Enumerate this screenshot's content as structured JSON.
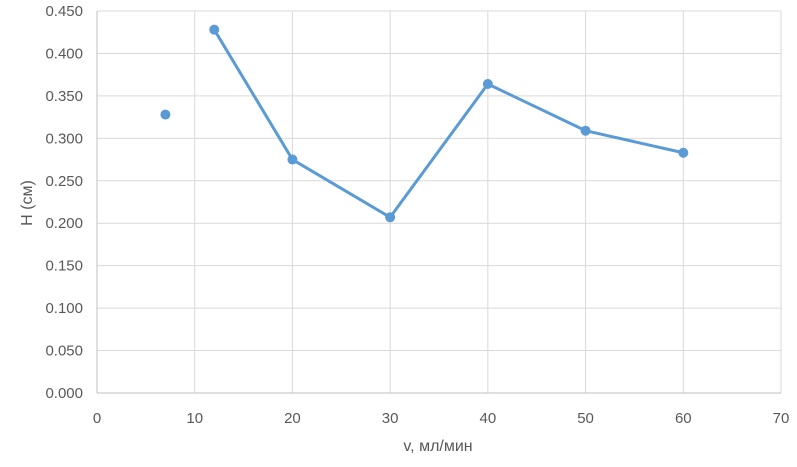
{
  "chart_data": {
    "type": "scatter",
    "title": "",
    "xlabel": "v, мл/мин",
    "ylabel": "H (см)",
    "xlim": [
      0,
      70
    ],
    "ylim": [
      0,
      0.45
    ],
    "x_ticks": [
      "0",
      "10",
      "20",
      "30",
      "40",
      "50",
      "60",
      "70"
    ],
    "y_ticks": [
      "0.000",
      "0.050",
      "0.100",
      "0.150",
      "0.200",
      "0.250",
      "0.300",
      "0.350",
      "0.400",
      "0.450"
    ],
    "grid": true,
    "legend": "none",
    "series": [
      {
        "x": [
          7,
          12,
          20,
          30,
          40,
          50,
          60
        ],
        "y": [
          0.328,
          0.428,
          0.275,
          0.207,
          0.364,
          0.309,
          0.283
        ],
        "color": "#5b9bd5",
        "line_segments": [
          [
            1,
            2
          ],
          [
            2,
            3
          ],
          [
            3,
            4
          ],
          [
            4,
            5
          ],
          [
            5,
            6
          ]
        ]
      }
    ]
  }
}
